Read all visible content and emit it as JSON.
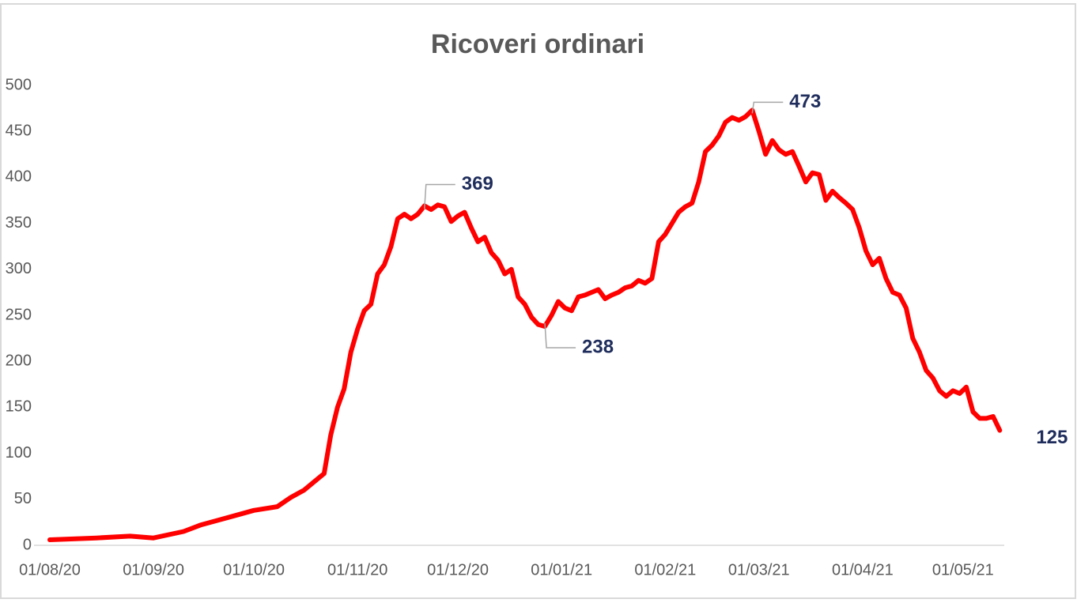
{
  "chart_data": {
    "type": "line",
    "title": "Ricoveri ordinari",
    "x": [
      "01/08/20",
      "15/08/20",
      "25/08/20",
      "01/09/20",
      "10/09/20",
      "15/09/20",
      "20/09/20",
      "25/09/20",
      "01/10/20",
      "08/10/20",
      "12/10/20",
      "16/10/20",
      "20/10/20",
      "22/10/20",
      "24/10/20",
      "26/10/20",
      "28/10/20",
      "30/10/20",
      "01/11/20",
      "03/11/20",
      "05/11/20",
      "07/11/20",
      "09/11/20",
      "11/11/20",
      "13/11/20",
      "15/11/20",
      "17/11/20",
      "19/11/20",
      "21/11/20",
      "23/11/20",
      "25/11/20",
      "27/11/20",
      "29/11/20",
      "01/12/20",
      "03/12/20",
      "05/12/20",
      "07/12/20",
      "09/12/20",
      "11/12/20",
      "13/12/20",
      "15/12/20",
      "17/12/20",
      "19/12/20",
      "21/12/20",
      "23/12/20",
      "25/12/20",
      "27/12/20",
      "29/12/20",
      "31/12/20",
      "02/01/21",
      "04/01/21",
      "06/01/21",
      "08/01/21",
      "10/01/21",
      "12/01/21",
      "14/01/21",
      "16/01/21",
      "18/01/21",
      "20/01/21",
      "22/01/21",
      "24/01/21",
      "26/01/21",
      "28/01/21",
      "30/01/21",
      "01/02/21",
      "03/02/21",
      "05/02/21",
      "07/02/21",
      "09/02/21",
      "11/02/21",
      "13/02/21",
      "15/02/21",
      "17/02/21",
      "19/02/21",
      "21/02/21",
      "23/02/21",
      "25/02/21",
      "27/02/21",
      "01/03/21",
      "03/03/21",
      "05/03/21",
      "07/03/21",
      "09/03/21",
      "11/03/21",
      "13/03/21",
      "15/03/21",
      "17/03/21",
      "19/03/21",
      "21/03/21",
      "23/03/21",
      "25/03/21",
      "27/03/21",
      "29/03/21",
      "31/03/21",
      "02/04/21",
      "04/04/21",
      "06/04/21",
      "08/04/21",
      "10/04/21",
      "12/04/21",
      "14/04/21",
      "16/04/21",
      "18/04/21",
      "20/04/21",
      "22/04/21",
      "24/04/21",
      "26/04/21",
      "28/04/21",
      "30/04/21",
      "02/05/21",
      "04/05/21",
      "06/05/21",
      "08/05/21",
      "10/05/21",
      "12/05/21"
    ],
    "series": [
      {
        "name": "Ricoveri ordinari",
        "color": "#ff0000",
        "values": [
          6,
          8,
          10,
          8,
          15,
          22,
          27,
          32,
          38,
          42,
          52,
          60,
          72,
          78,
          120,
          150,
          170,
          210,
          235,
          255,
          262,
          295,
          305,
          325,
          355,
          360,
          355,
          360,
          369,
          365,
          370,
          368,
          352,
          358,
          362,
          345,
          330,
          335,
          318,
          310,
          295,
          300,
          270,
          262,
          248,
          240,
          238,
          250,
          265,
          258,
          255,
          270,
          272,
          275,
          278,
          268,
          272,
          275,
          280,
          282,
          288,
          285,
          290,
          330,
          338,
          350,
          362,
          368,
          372,
          395,
          428,
          435,
          445,
          460,
          465,
          462,
          466,
          473,
          450,
          425,
          440,
          430,
          425,
          428,
          412,
          395,
          405,
          403,
          375,
          385,
          378,
          372,
          365,
          345,
          320,
          305,
          312,
          290,
          275,
          272,
          258,
          225,
          210,
          190,
          182,
          168,
          162,
          168,
          165,
          172,
          145,
          138,
          138,
          140,
          125
        ]
      }
    ],
    "annotations": [
      {
        "x": "21/11/20",
        "value": 369
      },
      {
        "x": "27/12/20",
        "value": 238
      },
      {
        "x": "27/02/21",
        "value": 473
      },
      {
        "x": "12/05/21",
        "value": 125
      }
    ],
    "xlim": [
      "01/08/20",
      "15/05/21"
    ],
    "xticks": [
      "01/08/20",
      "01/09/20",
      "01/10/20",
      "01/11/20",
      "01/12/20",
      "01/01/21",
      "01/02/21",
      "01/03/21",
      "01/04/21",
      "01/05/21"
    ],
    "ylim": [
      0,
      500
    ],
    "yticks": [
      0,
      50,
      100,
      150,
      200,
      250,
      300,
      350,
      400,
      450,
      500
    ]
  }
}
